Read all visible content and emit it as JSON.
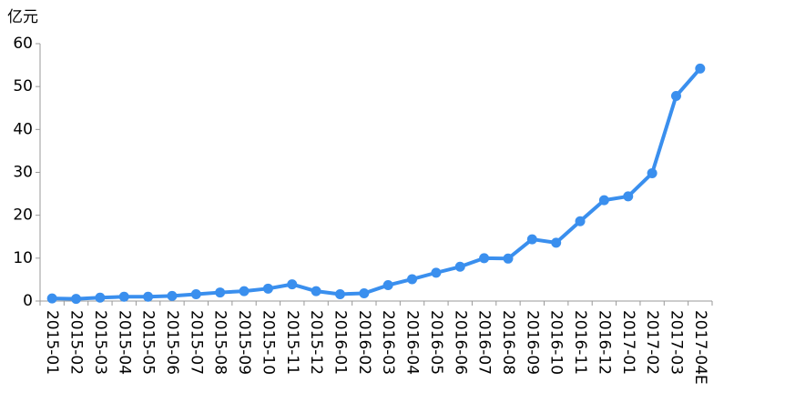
{
  "chart_data": {
    "type": "line",
    "y_unit_label": "亿元",
    "categories": [
      "2015-01",
      "2015-02",
      "2015-03",
      "2015-04",
      "2015-05",
      "2015-06",
      "2015-07",
      "2015-08",
      "2015-09",
      "2015-10",
      "2015-11",
      "2015-12",
      "2016-01",
      "2016-02",
      "2016-03",
      "2016-04",
      "2016-05",
      "2016-06",
      "2016-07",
      "2016-08",
      "2016-09",
      "2016-10",
      "2016-11",
      "2016-12",
      "2017-01",
      "2017-02",
      "2017-03",
      "2017-04E"
    ],
    "values": [
      0.6,
      0.5,
      0.8,
      1.0,
      1.0,
      1.2,
      1.6,
      2.0,
      2.3,
      2.9,
      3.9,
      2.3,
      1.6,
      1.8,
      3.7,
      5.1,
      6.6,
      8.0,
      10.0,
      9.9,
      14.4,
      13.6,
      18.6,
      23.5,
      24.4,
      29.8,
      47.8,
      54.2
    ],
    "color": "#3a8fee",
    "ylim": [
      0,
      60
    ],
    "yticks": [
      0,
      10,
      20,
      30,
      40,
      50,
      60
    ]
  }
}
